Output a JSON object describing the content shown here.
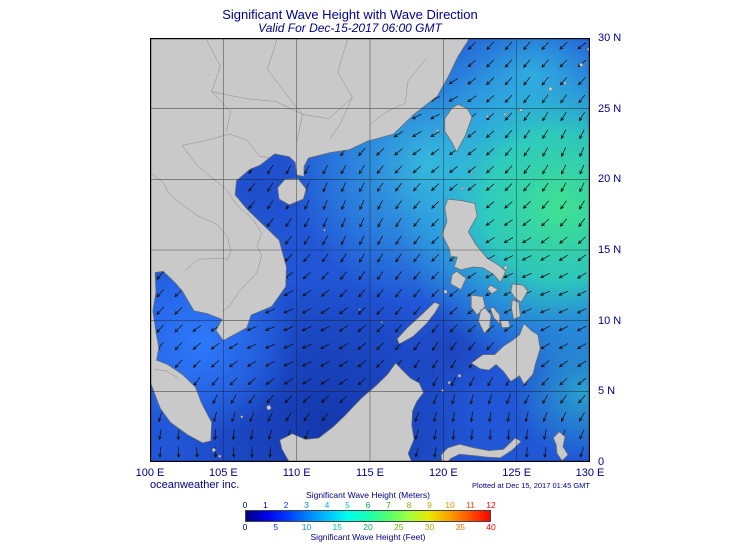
{
  "header": {
    "title": "Significant Wave Height with Wave Direction",
    "subtitle": "Valid For Dec-15-2017 06:00 GMT"
  },
  "axes": {
    "lon_labels": [
      "100 E",
      "105 E",
      "110 E",
      "115 E",
      "120 E",
      "125 E",
      "130 E"
    ],
    "lat_labels": [
      "30 N",
      "25 N",
      "20 N",
      "15 N",
      "10 N",
      "5 N",
      "0"
    ]
  },
  "footer": {
    "credit": "oceanweather inc.",
    "plotted_at": "Plotted at Dec 15, 2017 01:45 GMT"
  },
  "legend": {
    "meters_title": "Significant Wave Height (Meters)",
    "feet_title": "Significant Wave Height (Feet)",
    "meters_ticks": [
      {
        "label": "0",
        "color": "#000082"
      },
      {
        "label": "1",
        "color": "#0000e8"
      },
      {
        "label": "2",
        "color": "#0036ff"
      },
      {
        "label": "3",
        "color": "#0080ff"
      },
      {
        "label": "4",
        "color": "#00aee0"
      },
      {
        "label": "5",
        "color": "#00bfbf"
      },
      {
        "label": "6",
        "color": "#00b060"
      },
      {
        "label": "7",
        "color": "#3ab400"
      },
      {
        "label": "8",
        "color": "#8cb400"
      },
      {
        "label": "9",
        "color": "#c8a800"
      },
      {
        "label": "10",
        "color": "#ff8c00"
      },
      {
        "label": "11",
        "color": "#ff4600"
      },
      {
        "label": "12",
        "color": "#ff0000"
      }
    ],
    "feet_ticks": [
      {
        "label": "0",
        "color": "#000082"
      },
      {
        "label": "5",
        "color": "#0036ff"
      },
      {
        "label": "10",
        "color": "#0090ff"
      },
      {
        "label": "15",
        "color": "#00bfbf"
      },
      {
        "label": "20",
        "color": "#00b060"
      },
      {
        "label": "25",
        "color": "#6ab400"
      },
      {
        "label": "30",
        "color": "#c8a000"
      },
      {
        "label": "35",
        "color": "#ff6a00"
      },
      {
        "label": "40",
        "color": "#ff0000"
      }
    ],
    "gradient": [
      "#000082",
      "#0000e8",
      "#0036ff",
      "#0080ff",
      "#00bfff",
      "#00ffee",
      "#16ffb0",
      "#52ff6e",
      "#a0ff3c",
      "#e8e800",
      "#ffa000",
      "#ff5000",
      "#ff0000"
    ]
  },
  "map": {
    "sea_color": "#2156d6",
    "high_wave_color": "#40e290",
    "land_color": "#c9c9c9",
    "coast_color": "#6b6b6b",
    "grid_color": "#1a1a1a",
    "arrow_color": "#101010",
    "frame_color": "#000000",
    "label_color": "#00008c"
  }
}
